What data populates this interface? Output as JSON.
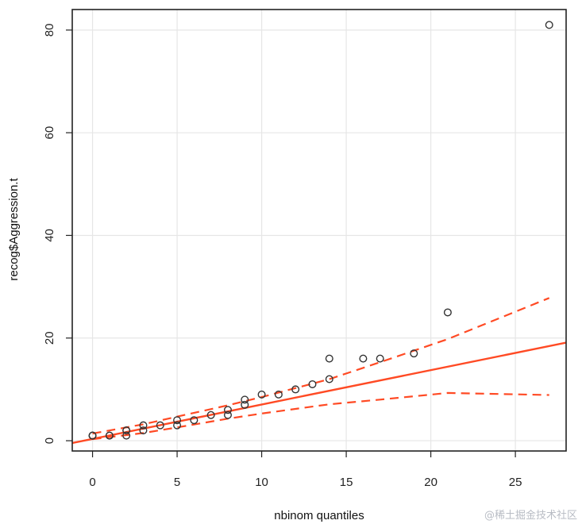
{
  "chart_data": {
    "type": "scatter",
    "title": "",
    "xlabel": "nbinom quantiles",
    "ylabel": "recog$Aggression.t",
    "xlim": [
      -1.2,
      28
    ],
    "ylim": [
      -2,
      84
    ],
    "xticks": [
      0,
      5,
      10,
      15,
      20,
      25
    ],
    "yticks": [
      0,
      20,
      40,
      60,
      80
    ],
    "grid": true,
    "points": [
      {
        "x": 0,
        "y": 1
      },
      {
        "x": 0,
        "y": 1
      },
      {
        "x": 0,
        "y": 1
      },
      {
        "x": 1,
        "y": 1
      },
      {
        "x": 1,
        "y": 1
      },
      {
        "x": 2,
        "y": 1
      },
      {
        "x": 2,
        "y": 2
      },
      {
        "x": 2,
        "y": 2
      },
      {
        "x": 3,
        "y": 2
      },
      {
        "x": 3,
        "y": 3
      },
      {
        "x": 4,
        "y": 3
      },
      {
        "x": 5,
        "y": 3
      },
      {
        "x": 5,
        "y": 4
      },
      {
        "x": 6,
        "y": 4
      },
      {
        "x": 7,
        "y": 5
      },
      {
        "x": 8,
        "y": 5
      },
      {
        "x": 8,
        "y": 6
      },
      {
        "x": 9,
        "y": 7
      },
      {
        "x": 9,
        "y": 8
      },
      {
        "x": 10,
        "y": 9
      },
      {
        "x": 11,
        "y": 9
      },
      {
        "x": 12,
        "y": 10
      },
      {
        "x": 13,
        "y": 11
      },
      {
        "x": 14,
        "y": 12
      },
      {
        "x": 14,
        "y": 16
      },
      {
        "x": 16,
        "y": 16
      },
      {
        "x": 17,
        "y": 16
      },
      {
        "x": 19,
        "y": 17
      },
      {
        "x": 21,
        "y": 25
      },
      {
        "x": 27,
        "y": 81
      }
    ],
    "reference_line": {
      "intercept": 0.35,
      "slope": 0.67
    },
    "envelope_upper": [
      [
        0,
        1.4
      ],
      [
        3,
        3.2
      ],
      [
        5,
        4.7
      ],
      [
        8,
        6.9
      ],
      [
        10,
        8.5
      ],
      [
        14,
        12.0
      ],
      [
        17,
        15.3
      ],
      [
        21,
        19.8
      ],
      [
        27,
        27.8
      ]
    ],
    "envelope_lower": [
      [
        0,
        0.3
      ],
      [
        3,
        1.5
      ],
      [
        5,
        2.6
      ],
      [
        8,
        4.3
      ],
      [
        10,
        5.3
      ],
      [
        14,
        7.1
      ],
      [
        17,
        8.0
      ],
      [
        21,
        9.3
      ],
      [
        27,
        8.9
      ]
    ]
  },
  "colors": {
    "points": "#333333",
    "line": "#ff4a24",
    "grid": "#e6e6e6",
    "frame": "#222222"
  },
  "watermark": "@稀土掘金技术社区"
}
